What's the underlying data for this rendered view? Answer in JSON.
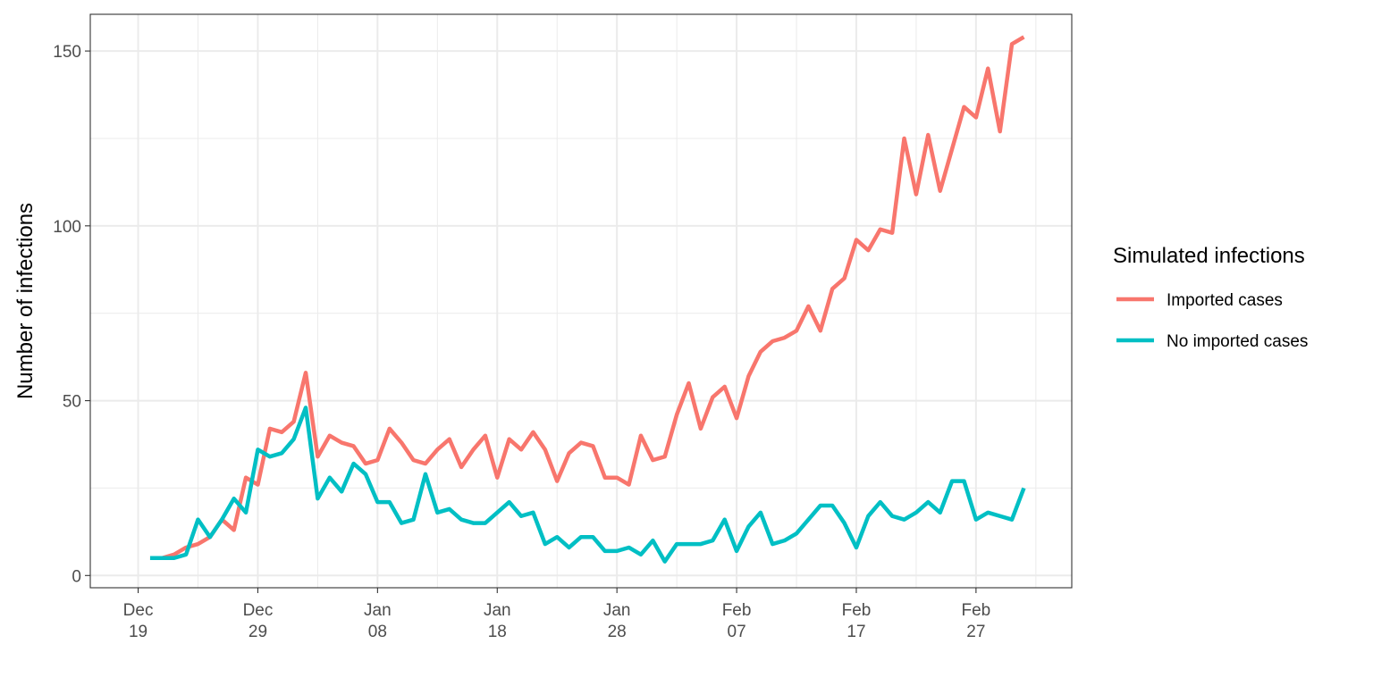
{
  "chart_data": {
    "type": "line",
    "ylabel": "Number of infections",
    "xlabel": "",
    "ylim": [
      -3.5,
      160.5
    ],
    "xlim": [
      "2019-12-15",
      "2020-03-06"
    ],
    "grid": true,
    "legend_position": "right",
    "legend_title": "Simulated infections",
    "y_ticks": [
      0,
      50,
      100,
      150
    ],
    "x_ticks": [
      {
        "date": "2019-12-19",
        "line1": "Dec",
        "line2": "19"
      },
      {
        "date": "2019-12-29",
        "line1": "Dec",
        "line2": "29"
      },
      {
        "date": "2020-01-08",
        "line1": "Jan",
        "line2": "08"
      },
      {
        "date": "2020-01-18",
        "line1": "Jan",
        "line2": "18"
      },
      {
        "date": "2020-01-28",
        "line1": "Jan",
        "line2": "28"
      },
      {
        "date": "2020-02-07",
        "line1": "Feb",
        "line2": "07"
      },
      {
        "date": "2020-02-17",
        "line1": "Feb",
        "line2": "17"
      },
      {
        "date": "2020-02-27",
        "line1": "Feb",
        "line2": "27"
      }
    ],
    "x": [
      "2019-12-20",
      "2019-12-21",
      "2019-12-22",
      "2019-12-23",
      "2019-12-24",
      "2019-12-25",
      "2019-12-26",
      "2019-12-27",
      "2019-12-28",
      "2019-12-29",
      "2019-12-30",
      "2019-12-31",
      "2020-01-01",
      "2020-01-02",
      "2020-01-03",
      "2020-01-04",
      "2020-01-05",
      "2020-01-06",
      "2020-01-07",
      "2020-01-08",
      "2020-01-09",
      "2020-01-10",
      "2020-01-11",
      "2020-01-12",
      "2020-01-13",
      "2020-01-14",
      "2020-01-15",
      "2020-01-16",
      "2020-01-17",
      "2020-01-18",
      "2020-01-19",
      "2020-01-20",
      "2020-01-21",
      "2020-01-22",
      "2020-01-23",
      "2020-01-24",
      "2020-01-25",
      "2020-01-26",
      "2020-01-27",
      "2020-01-28",
      "2020-01-29",
      "2020-01-30",
      "2020-01-31",
      "2020-02-01",
      "2020-02-02",
      "2020-02-03",
      "2020-02-04",
      "2020-02-05",
      "2020-02-06",
      "2020-02-07",
      "2020-02-08",
      "2020-02-09",
      "2020-02-10",
      "2020-02-11",
      "2020-02-12",
      "2020-02-13",
      "2020-02-14",
      "2020-02-15",
      "2020-02-16",
      "2020-02-17",
      "2020-02-18",
      "2020-02-19",
      "2020-02-20",
      "2020-02-21",
      "2020-02-22",
      "2020-02-23",
      "2020-02-24",
      "2020-02-25",
      "2020-02-26",
      "2020-02-27",
      "2020-02-28",
      "2020-02-29",
      "2020-03-01",
      "2020-03-02"
    ],
    "series": [
      {
        "name": "Imported cases",
        "color": "#F8766D",
        "values": [
          5,
          5,
          6,
          8,
          9,
          11,
          16,
          13,
          28,
          26,
          42,
          41,
          44,
          58,
          34,
          40,
          38,
          37,
          32,
          33,
          42,
          38,
          33,
          32,
          36,
          39,
          31,
          36,
          40,
          28,
          39,
          36,
          41,
          36,
          27,
          35,
          38,
          37,
          28,
          28,
          26,
          40,
          33,
          34,
          46,
          55,
          42,
          51,
          54,
          45,
          57,
          64,
          67,
          68,
          70,
          77,
          70,
          82,
          85,
          96,
          93,
          99,
          98,
          125,
          109,
          126,
          110,
          122,
          134,
          131,
          145,
          127,
          152,
          154
        ]
      },
      {
        "name": "No imported cases",
        "color": "#00BFC4",
        "values": [
          5,
          5,
          5,
          6,
          16,
          11,
          16,
          22,
          18,
          36,
          34,
          35,
          39,
          48,
          22,
          28,
          24,
          32,
          29,
          21,
          21,
          15,
          16,
          29,
          18,
          19,
          16,
          15,
          15,
          18,
          21,
          17,
          18,
          9,
          11,
          8,
          11,
          11,
          7,
          7,
          8,
          6,
          10,
          4,
          9,
          9,
          9,
          10,
          16,
          7,
          14,
          18,
          9,
          10,
          12,
          16,
          20,
          20,
          15,
          8,
          17,
          21,
          17,
          16,
          18,
          21,
          18,
          27,
          27,
          16,
          18,
          17,
          16,
          25
        ]
      }
    ]
  }
}
